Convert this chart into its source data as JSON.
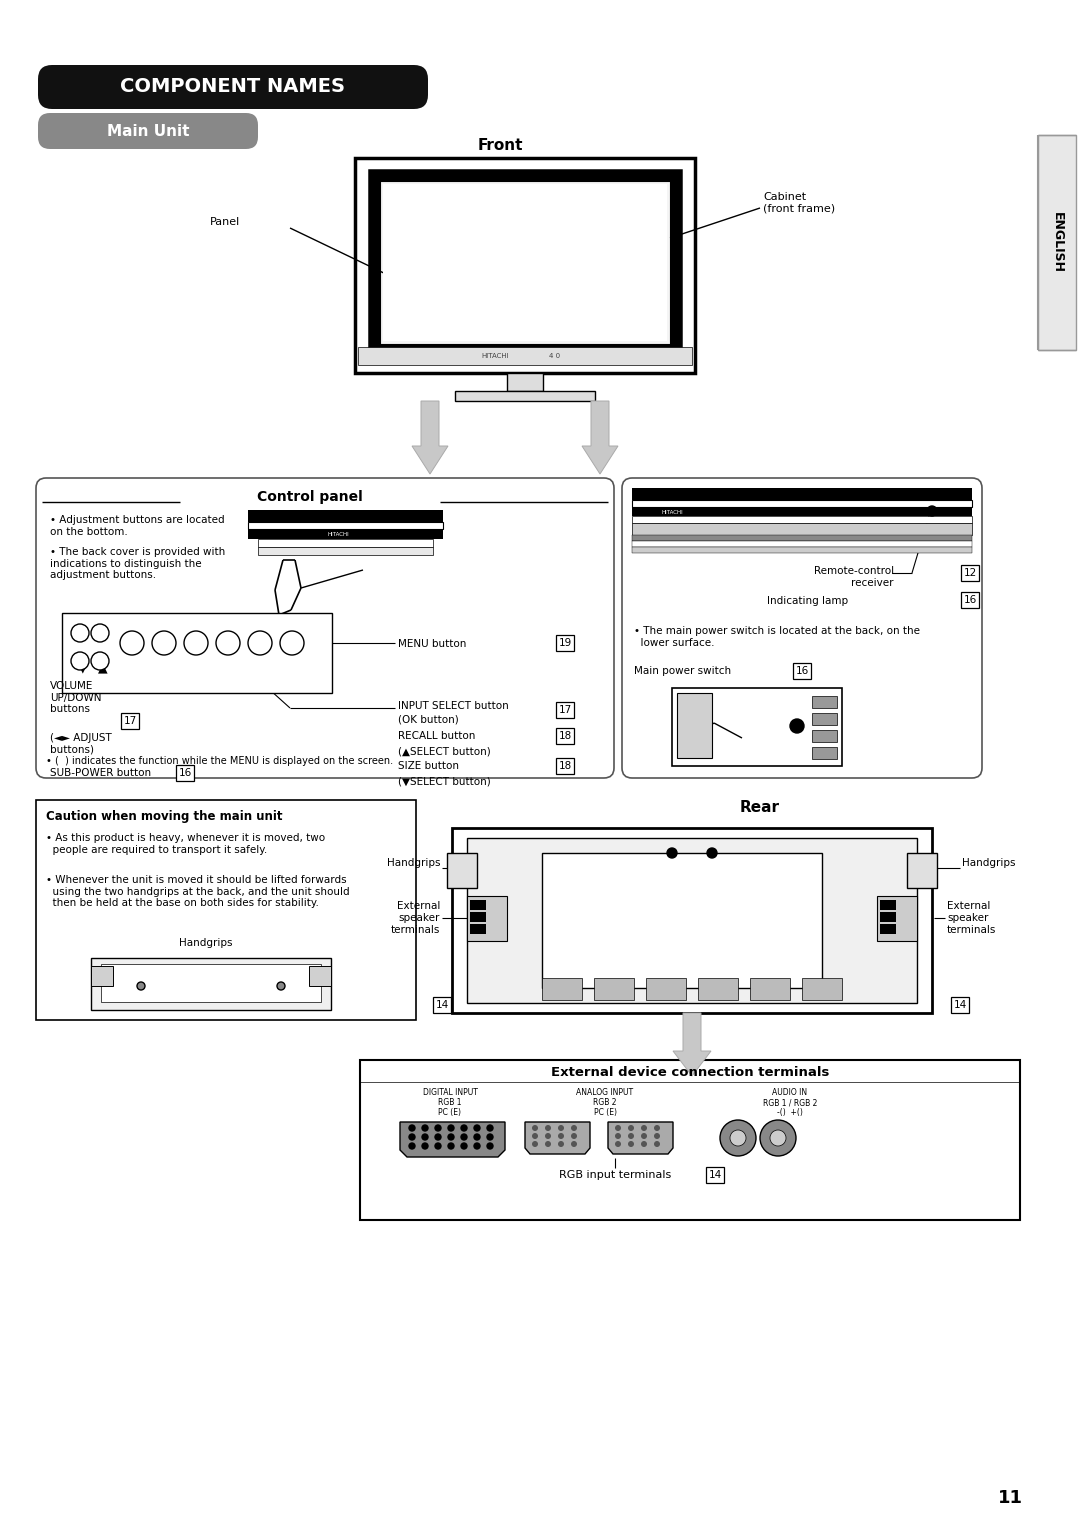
{
  "bg_color": "#ffffff",
  "title": "COMPONENT NAMES",
  "subtitle": "Main Unit",
  "front_label": "Front",
  "rear_label": "Rear",
  "control_label": "Control panel",
  "external_label": "External device connection terminals",
  "caution_title": "Caution when moving the main unit",
  "panel_label": "Panel",
  "cabinet_label": "Cabinet\n(front frame)",
  "handgrips_caution_label": "Handgrips",
  "control_bullet1": "Adjustment buttons are located\non the bottom.",
  "control_bullet2": "The back cover is provided with\nindications to distinguish the\nadjustment buttons.",
  "control_note": "• (  ) indicates the function while the MENU is displayed on the screen.",
  "menu_btn": "MENU button",
  "menu_num": "19",
  "input_sel_btn": "INPUT SELECT button",
  "input_sel_sub": "(OK button)",
  "input_sel_num": "17",
  "recall_btn": "RECALL button",
  "recall_num": "18",
  "recall_sub": "(▲SELECT button)",
  "size_btn": "SIZE button",
  "size_num": "18",
  "size_sub": "(▼SELECT button)",
  "vol_label": "VOLUME\nUP/DOWN\nbuttons",
  "vol_num": "17",
  "adjust_label": "(◄► ADJUST\nbuttons)",
  "subpower_label": "SUB-POWER button",
  "subpower_num": "16",
  "remote_label": "Remote-control\nreceiver",
  "remote_num": "12",
  "lamp_label": "Indicating lamp",
  "lamp_num": "16",
  "power_note": "• The main power switch is located at the back, on the\n  lower surface.",
  "power_label": "Main power switch",
  "power_num": "16",
  "caution_bullet1": "• As this product is heavy, whenever it is moved, two\n  people are required to transport it safely.",
  "caution_bullet2": "• Whenever the unit is moved it should be lifted forwards\n  using the two handgrips at the back, and the unit should\n  then be held at the base on both sides for stability.",
  "rear_handgrips_l": "Handgrips",
  "rear_ext_l": "External\nspeaker\nterminals",
  "rear_num": "14",
  "rear_handgrips_r": "Handgrips",
  "rear_ext_r": "External\nspeaker\nterminals",
  "rgb_label": "RGB input terminals",
  "rgb_num": "14",
  "digital_input_l1": "DIGITAL INPUT",
  "digital_input_l2": "RGB 1",
  "digital_input_l3": "PC (E)",
  "analog_input_l1": "ANALOG INPUT",
  "analog_input_l2": "RGB 2",
  "analog_input_l3": "PC (E)",
  "audio_in_l1": "AUDIO IN",
  "audio_in_l2": "RGB 1 / RGB 2",
  "audio_in_l3": "-()  +()",
  "english_tab": "ENGLISH",
  "page_num": "11"
}
